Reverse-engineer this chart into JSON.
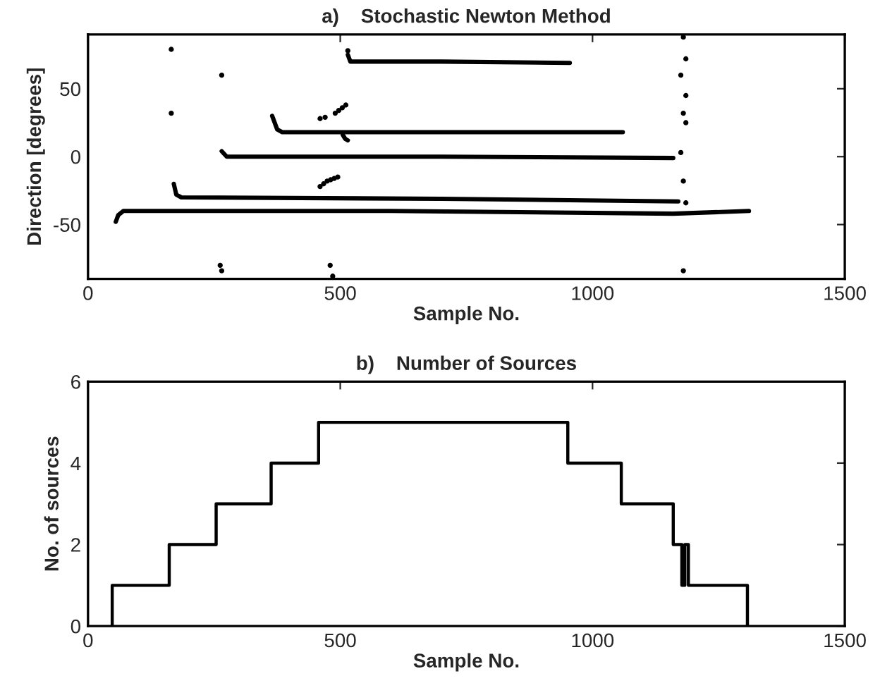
{
  "chart_data": [
    {
      "type": "line",
      "title": "a)    Stochastic Newton Method",
      "xlabel": "Sample No.",
      "ylabel": "Direction [degrees]",
      "xlim": [
        0,
        1500
      ],
      "xticks": [
        0,
        500,
        1000,
        1500
      ],
      "ylim": [
        -90,
        90
      ],
      "yticks": [
        -50,
        0,
        50
      ],
      "grid": false,
      "legend": false,
      "line_style": "solid",
      "marker": "none",
      "series": [
        {
          "type": "line",
          "color": "#000000",
          "x": [
            55,
            60,
            70,
            600,
            1160,
            1310
          ],
          "values": [
            -48,
            -43,
            -40,
            -40,
            -42,
            -40
          ]
        },
        {
          "type": "line",
          "color": "#000000",
          "x": [
            170,
            175,
            185,
            700,
            1170
          ],
          "values": [
            -20,
            -28,
            -30,
            -31,
            -33
          ]
        },
        {
          "type": "line",
          "color": "#000000",
          "x": [
            265,
            275,
            700,
            1160
          ],
          "values": [
            4,
            0,
            0,
            -1
          ]
        },
        {
          "type": "line",
          "color": "#000000",
          "x": [
            365,
            375,
            385,
            700,
            1060
          ],
          "values": [
            30,
            20,
            18,
            18,
            18
          ]
        },
        {
          "type": "line",
          "color": "#000000",
          "x": [
            515,
            520,
            700,
            955
          ],
          "values": [
            75,
            70,
            70,
            69
          ]
        },
        {
          "type": "line",
          "color": "#000000",
          "x": [
            505,
            510,
            515
          ],
          "values": [
            16,
            13,
            12
          ]
        },
        {
          "type": "scatter",
          "color": "#000000",
          "marker": "circle",
          "x": [
            165,
            165,
            265,
            265,
            262,
            460,
            470,
            480,
            485,
            515,
            1180,
            1185,
            1175,
            1185,
            1180,
            1185,
            1175,
            1180,
            1185,
            1180,
            460,
            467,
            474,
            481,
            488,
            495,
            490,
            497,
            504,
            511
          ],
          "values": [
            79,
            32,
            60,
            -84,
            -80,
            28,
            29,
            -80,
            -88,
            78,
            88,
            72,
            60,
            45,
            32,
            25,
            3,
            -18,
            -34,
            -84,
            -22,
            -20,
            -18,
            -17,
            -16,
            -15,
            32,
            34,
            36,
            38
          ]
        }
      ]
    },
    {
      "type": "step",
      "title": "b)    Number of Sources",
      "xlabel": "Sample No.",
      "ylabel": "No. of sources",
      "xlim": [
        0,
        1500
      ],
      "xticks": [
        0,
        500,
        1000,
        1500
      ],
      "ylim": [
        0,
        6
      ],
      "yticks": [
        0,
        2,
        4,
        6
      ],
      "grid": false,
      "legend": false,
      "series": [
        {
          "color": "#000000",
          "x": [
            48,
            48,
            161,
            254,
            363,
            457,
            951,
            1057,
            1160,
            1177,
            1183,
            1190,
            1307
          ],
          "values": [
            0,
            1,
            2,
            3,
            4,
            5,
            4,
            3,
            2,
            1,
            2,
            1,
            0
          ]
        }
      ]
    }
  ]
}
